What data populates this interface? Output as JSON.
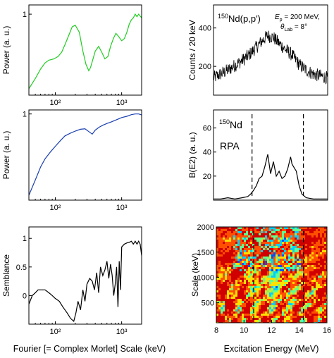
{
  "bottom_labels": {
    "left": "Fourier [= Complex Morlet] Scale (keV)",
    "right": "Excitation Energy (MeV)"
  },
  "chart_data": [
    {
      "id": "power-spectrum-data",
      "type": "line",
      "xscale": "log",
      "xlim": [
        40,
        2000
      ],
      "yscale": "log",
      "ylim": [
        0.1,
        1.3
      ],
      "xticks": [
        {
          "v": 100,
          "label": "10²"
        },
        {
          "v": 1000,
          "label": "10³"
        }
      ],
      "yticks": [
        {
          "v": 1,
          "label": "1"
        }
      ],
      "ylabel": "Power (a. u.)",
      "color": "#22cc22",
      "x": [
        40,
        50,
        60,
        70,
        80,
        95,
        110,
        125,
        140,
        160,
        180,
        200,
        230,
        260,
        290,
        320,
        340,
        370,
        400,
        450,
        500,
        560,
        620,
        680,
        750,
        820,
        900,
        1000,
        1100,
        1200,
        1300,
        1400,
        1500,
        1600,
        1700,
        1800,
        1900,
        2000
      ],
      "y": [
        0.12,
        0.16,
        0.21,
        0.25,
        0.27,
        0.28,
        0.3,
        0.34,
        0.42,
        0.55,
        0.7,
        0.73,
        0.6,
        0.35,
        0.24,
        0.2,
        0.22,
        0.28,
        0.35,
        0.4,
        0.34,
        0.28,
        0.3,
        0.4,
        0.5,
        0.58,
        0.53,
        0.47,
        0.5,
        0.6,
        0.75,
        0.85,
        0.9,
        1.0,
        0.93,
        1.0,
        0.95,
        0.9
      ]
    },
    {
      "id": "power-spectrum-rpa",
      "type": "line",
      "xscale": "log",
      "xlim": [
        40,
        2000
      ],
      "yscale": "log",
      "ylim": [
        0.02,
        1.2
      ],
      "xticks": [
        {
          "v": 100,
          "label": "10²"
        },
        {
          "v": 1000,
          "label": "10³"
        }
      ],
      "yticks": [
        {
          "v": 1,
          "label": "1"
        }
      ],
      "ylabel": "Power (a. u.)",
      "color": "#1a3fb0",
      "x": [
        40,
        50,
        60,
        70,
        85,
        100,
        120,
        140,
        170,
        200,
        240,
        280,
        320,
        360,
        400,
        460,
        520,
        600,
        700,
        800,
        900,
        1000,
        1200,
        1400,
        1600,
        1800,
        2000
      ],
      "y": [
        0.025,
        0.05,
        0.09,
        0.13,
        0.18,
        0.23,
        0.3,
        0.37,
        0.42,
        0.46,
        0.5,
        0.51,
        0.45,
        0.4,
        0.48,
        0.55,
        0.6,
        0.65,
        0.7,
        0.75,
        0.8,
        0.85,
        0.9,
        0.97,
        1.0,
        1.0,
        0.96
      ]
    },
    {
      "id": "semblance",
      "type": "line",
      "xscale": "log",
      "xlim": [
        40,
        2000
      ],
      "ylim": [
        -0.5,
        1.2
      ],
      "xticks": [
        {
          "v": 100,
          "label": "10²"
        },
        {
          "v": 1000,
          "label": "10³"
        }
      ],
      "yticks": [
        {
          "v": -0.5,
          "label": ""
        },
        {
          "v": 0,
          "label": "0"
        },
        {
          "v": 0.5,
          "label": "0.5"
        },
        {
          "v": 1,
          "label": "1"
        }
      ],
      "ylabel": "Semblance",
      "color": "#000000",
      "x": [
        40,
        45,
        50,
        55,
        60,
        70,
        80,
        90,
        100,
        115,
        130,
        150,
        170,
        190,
        205,
        220,
        240,
        260,
        280,
        300,
        330,
        360,
        390,
        420,
        450,
        480,
        520,
        560,
        600,
        640,
        680,
        720,
        760,
        800,
        840,
        880,
        920,
        960,
        1000,
        1100,
        1200,
        1300,
        1400,
        1500,
        1600,
        1700,
        1800,
        1900,
        2000
      ],
      "y": [
        -0.15,
        0.0,
        0.05,
        0.1,
        0.1,
        0.1,
        0.05,
        0.0,
        -0.05,
        -0.1,
        -0.2,
        -0.3,
        -0.4,
        -0.45,
        -0.3,
        -0.1,
        -0.25,
        0.1,
        -0.1,
        0.2,
        0.3,
        0.25,
        0.1,
        0.4,
        0.05,
        0.5,
        0.35,
        0.45,
        0.6,
        0.3,
        0.55,
        0.35,
        0.0,
        0.2,
        0.5,
        -0.2,
        0.6,
        0.1,
        0.85,
        0.9,
        0.92,
        0.93,
        0.95,
        0.9,
        0.95,
        0.9,
        0.95,
        0.9,
        0.7
      ]
    },
    {
      "id": "counts-spectrum",
      "type": "line",
      "xlim": [
        8,
        16
      ],
      "ylim": [
        50,
        520
      ],
      "yticks": [
        {
          "v": 200,
          "label": "200"
        },
        {
          "v": 400,
          "label": "400"
        }
      ],
      "ylabel": "Counts / 20 keV",
      "annotation": {
        "isotope_mass": "150",
        "reaction": "Nd(p,p′)",
        "beam_symbol": "E",
        "beam_sub": "p",
        "beam_value": " = 200 MeV,",
        "angle_symbol": "θ",
        "angle_sub": "Lab",
        "angle_value": " = 8°"
      },
      "color": "#000000",
      "x": [
        8,
        9,
        10,
        10.5,
        11,
        11.5,
        11.8,
        12.2,
        12.6,
        13,
        13.5,
        14,
        14.5,
        15,
        15.5,
        16
      ],
      "y": [
        140,
        180,
        230,
        260,
        300,
        340,
        360,
        350,
        320,
        290,
        260,
        210,
        180,
        160,
        150,
        140
      ],
      "noise_amplitude": 35
    },
    {
      "id": "be2-rpa",
      "type": "line",
      "xlim": [
        8,
        16
      ],
      "ylim": [
        0,
        75
      ],
      "yticks": [
        {
          "v": 20,
          "label": "20"
        },
        {
          "v": 40,
          "label": "40"
        },
        {
          "v": 60,
          "label": "60"
        }
      ],
      "ylabel": "B(E2)  (a. u.)",
      "annotation": {
        "isotope_mass": "150",
        "element": "Nd",
        "model": "RPA"
      },
      "dashed_lines_x": [
        10.7,
        14.3
      ],
      "color": "#000000",
      "x": [
        8,
        8.5,
        9,
        9.5,
        10,
        10.4,
        10.6,
        10.8,
        11,
        11.2,
        11.4,
        11.6,
        11.8,
        12,
        12.2,
        12.4,
        12.6,
        12.8,
        13,
        13.2,
        13.4,
        13.5,
        13.6,
        13.8,
        14,
        14.2,
        14.5,
        15,
        15.5,
        16
      ],
      "y": [
        1,
        1,
        2,
        1,
        2,
        3,
        5,
        8,
        12,
        18,
        20,
        28,
        38,
        22,
        32,
        20,
        24,
        18,
        20,
        26,
        36,
        30,
        28,
        24,
        12,
        5,
        2,
        1,
        1,
        1
      ]
    },
    {
      "id": "wavelet-map",
      "type": "heatmap",
      "xlim": [
        8,
        16
      ],
      "ylim": [
        100,
        2000
      ],
      "xticks": [
        {
          "v": 8,
          "label": "8"
        },
        {
          "v": 10,
          "label": "10"
        },
        {
          "v": 12,
          "label": "12"
        },
        {
          "v": 14,
          "label": "14"
        },
        {
          "v": 16,
          "label": "16"
        }
      ],
      "yticks": [
        {
          "v": 500,
          "label": "500"
        },
        {
          "v": 1000,
          "label": "1000"
        },
        {
          "v": 1500,
          "label": "1500"
        },
        {
          "v": 2000,
          "label": "2000"
        }
      ],
      "ylabel": "Scale (keV)",
      "xlabel": "Excitation Energy (MeV)",
      "dashed_lines_x": [
        10.7,
        14.3
      ],
      "colorscale": [
        "#00008f",
        "#0050ff",
        "#00d0ff",
        "#60ff90",
        "#ffe000",
        "#ff5000",
        "#d00000"
      ]
    }
  ]
}
